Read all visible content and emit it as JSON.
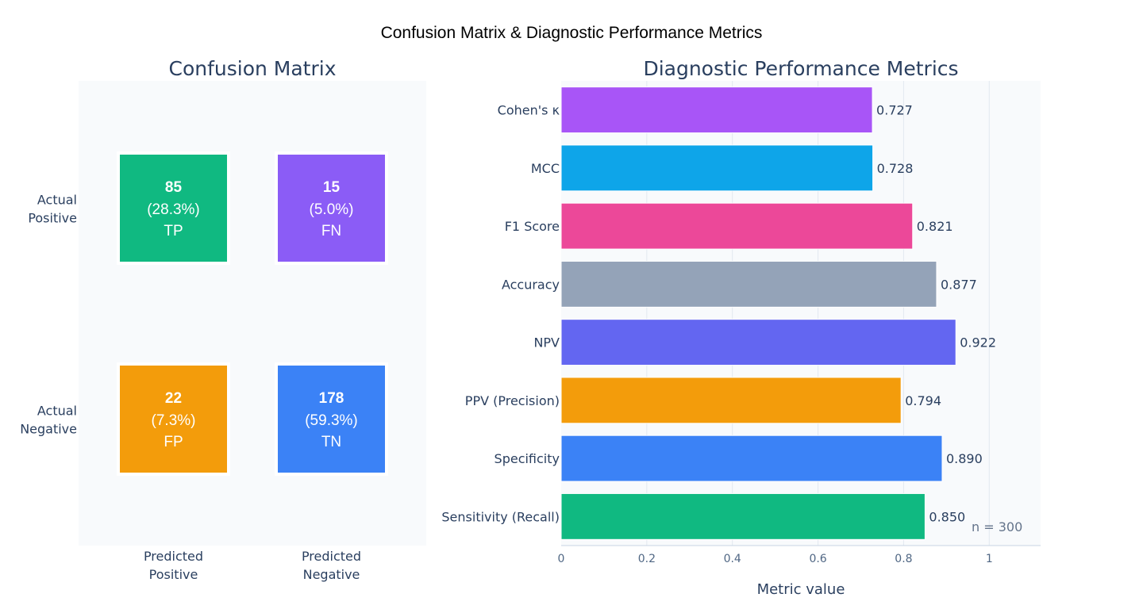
{
  "title": "Confusion Matrix & Diagnostic Performance Metrics",
  "confusion_matrix": {
    "title": "Confusion Matrix",
    "row_labels": [
      [
        "Actual",
        "Positive"
      ],
      [
        "Actual",
        "Negative"
      ]
    ],
    "col_labels": [
      [
        "Predicted",
        "Positive"
      ],
      [
        "Predicted",
        "Negative"
      ]
    ],
    "cells": [
      {
        "count": "85",
        "pct": "(28.3%)",
        "tag": "TP",
        "color": "#10b981"
      },
      {
        "count": "15",
        "pct": "(5.0%)",
        "tag": "FN",
        "color": "#8b5cf6"
      },
      {
        "count": "22",
        "pct": "(7.3%)",
        "tag": "FP",
        "color": "#f39c0b"
      },
      {
        "count": "178",
        "pct": "(59.3%)",
        "tag": "TN",
        "color": "#3b82f6"
      }
    ]
  },
  "chart_data": {
    "type": "bar",
    "orientation": "horizontal",
    "title": "Diagnostic Performance Metrics",
    "xlabel": "Metric value",
    "ylabel": "",
    "xlim": [
      0,
      1.12
    ],
    "xticks": [
      0,
      0.2,
      0.4,
      0.6,
      0.8,
      1
    ],
    "xtick_labels": [
      "0",
      "0.2",
      "0.4",
      "0.6",
      "0.8",
      "1"
    ],
    "categories": [
      "Sensitivity (Recall)",
      "Specificity",
      "PPV (Precision)",
      "NPV",
      "Accuracy",
      "F1 Score",
      "MCC",
      "Cohen's κ"
    ],
    "values": [
      0.85,
      0.89,
      0.794,
      0.922,
      0.877,
      0.821,
      0.728,
      0.727
    ],
    "value_labels": [
      "0.850",
      "0.890",
      "0.794",
      "0.922",
      "0.877",
      "0.821",
      "0.728",
      "0.727"
    ],
    "colors": [
      "#10b981",
      "#3b82f6",
      "#f39c0b",
      "#6366f1",
      "#94a3b8",
      "#ec4899",
      "#0ea5e9",
      "#a855f7"
    ],
    "annotation": "n = 300",
    "grid": true
  }
}
